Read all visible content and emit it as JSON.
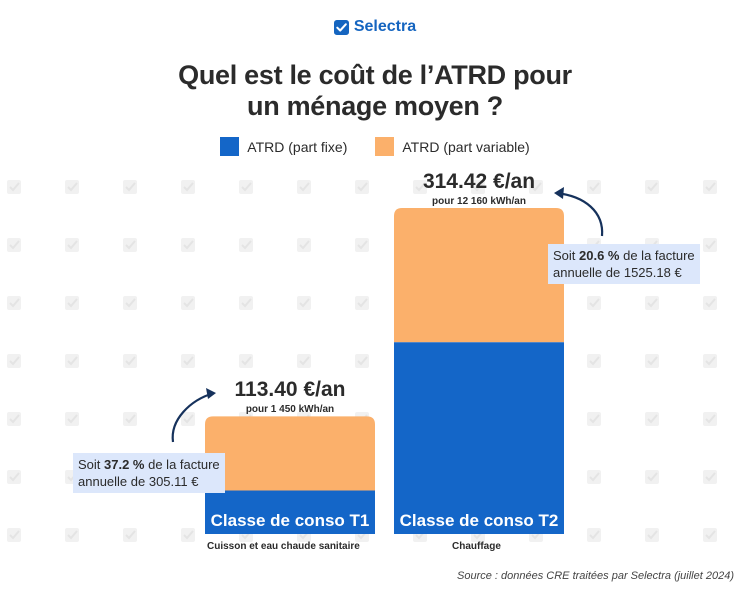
{
  "header": {
    "brand": "Selectra",
    "title_line1": "Quel est le coût de l’ATRD pour",
    "title_line2": "un ménage moyen ?"
  },
  "colors": {
    "fixe": "#1466c8",
    "variable": "#fbb06b",
    "brand": "#1565c0",
    "share_bg": "#dce7fb",
    "arrow": "#16325c"
  },
  "legend": [
    {
      "label": "ATRD (part fixe)",
      "color": "#1466c8"
    },
    {
      "label": "ATRD (part variable)",
      "color": "#fbb06b"
    }
  ],
  "chart_data": {
    "type": "bar",
    "stacked": true,
    "categories": [
      "Classe de conso T1",
      "Classe de conso T2"
    ],
    "category_descriptions": [
      "Cuisson et eau chaude sanitaire",
      "Chauffage"
    ],
    "series": [
      {
        "name": "ATRD (part fixe)",
        "values": [
          42.0,
          185.0
        ]
      },
      {
        "name": "ATRD (part variable)",
        "values": [
          71.4,
          129.42
        ]
      }
    ],
    "totals": [
      113.4,
      314.42
    ],
    "total_labels": [
      "113.40 €/an",
      "314.42 €/an"
    ],
    "consumption_labels": [
      "pour 1 450 kWh/an",
      "pour 12 160 kWh/an"
    ],
    "share_notes": [
      {
        "prefix": "Soit ",
        "pct": "37.2 %",
        "suffix": " de la facture",
        "line2": "annuelle de 305.11 €"
      },
      {
        "prefix": "Soit ",
        "pct": "20.6 %",
        "suffix": " de la facture",
        "line2": "annuelle de 1525.18 €"
      }
    ],
    "ylim": [
      0,
      314.42
    ],
    "grid": false,
    "legend_position": "top-center"
  },
  "source": "Source : données CRE traitées par Selectra (juillet 2024)"
}
